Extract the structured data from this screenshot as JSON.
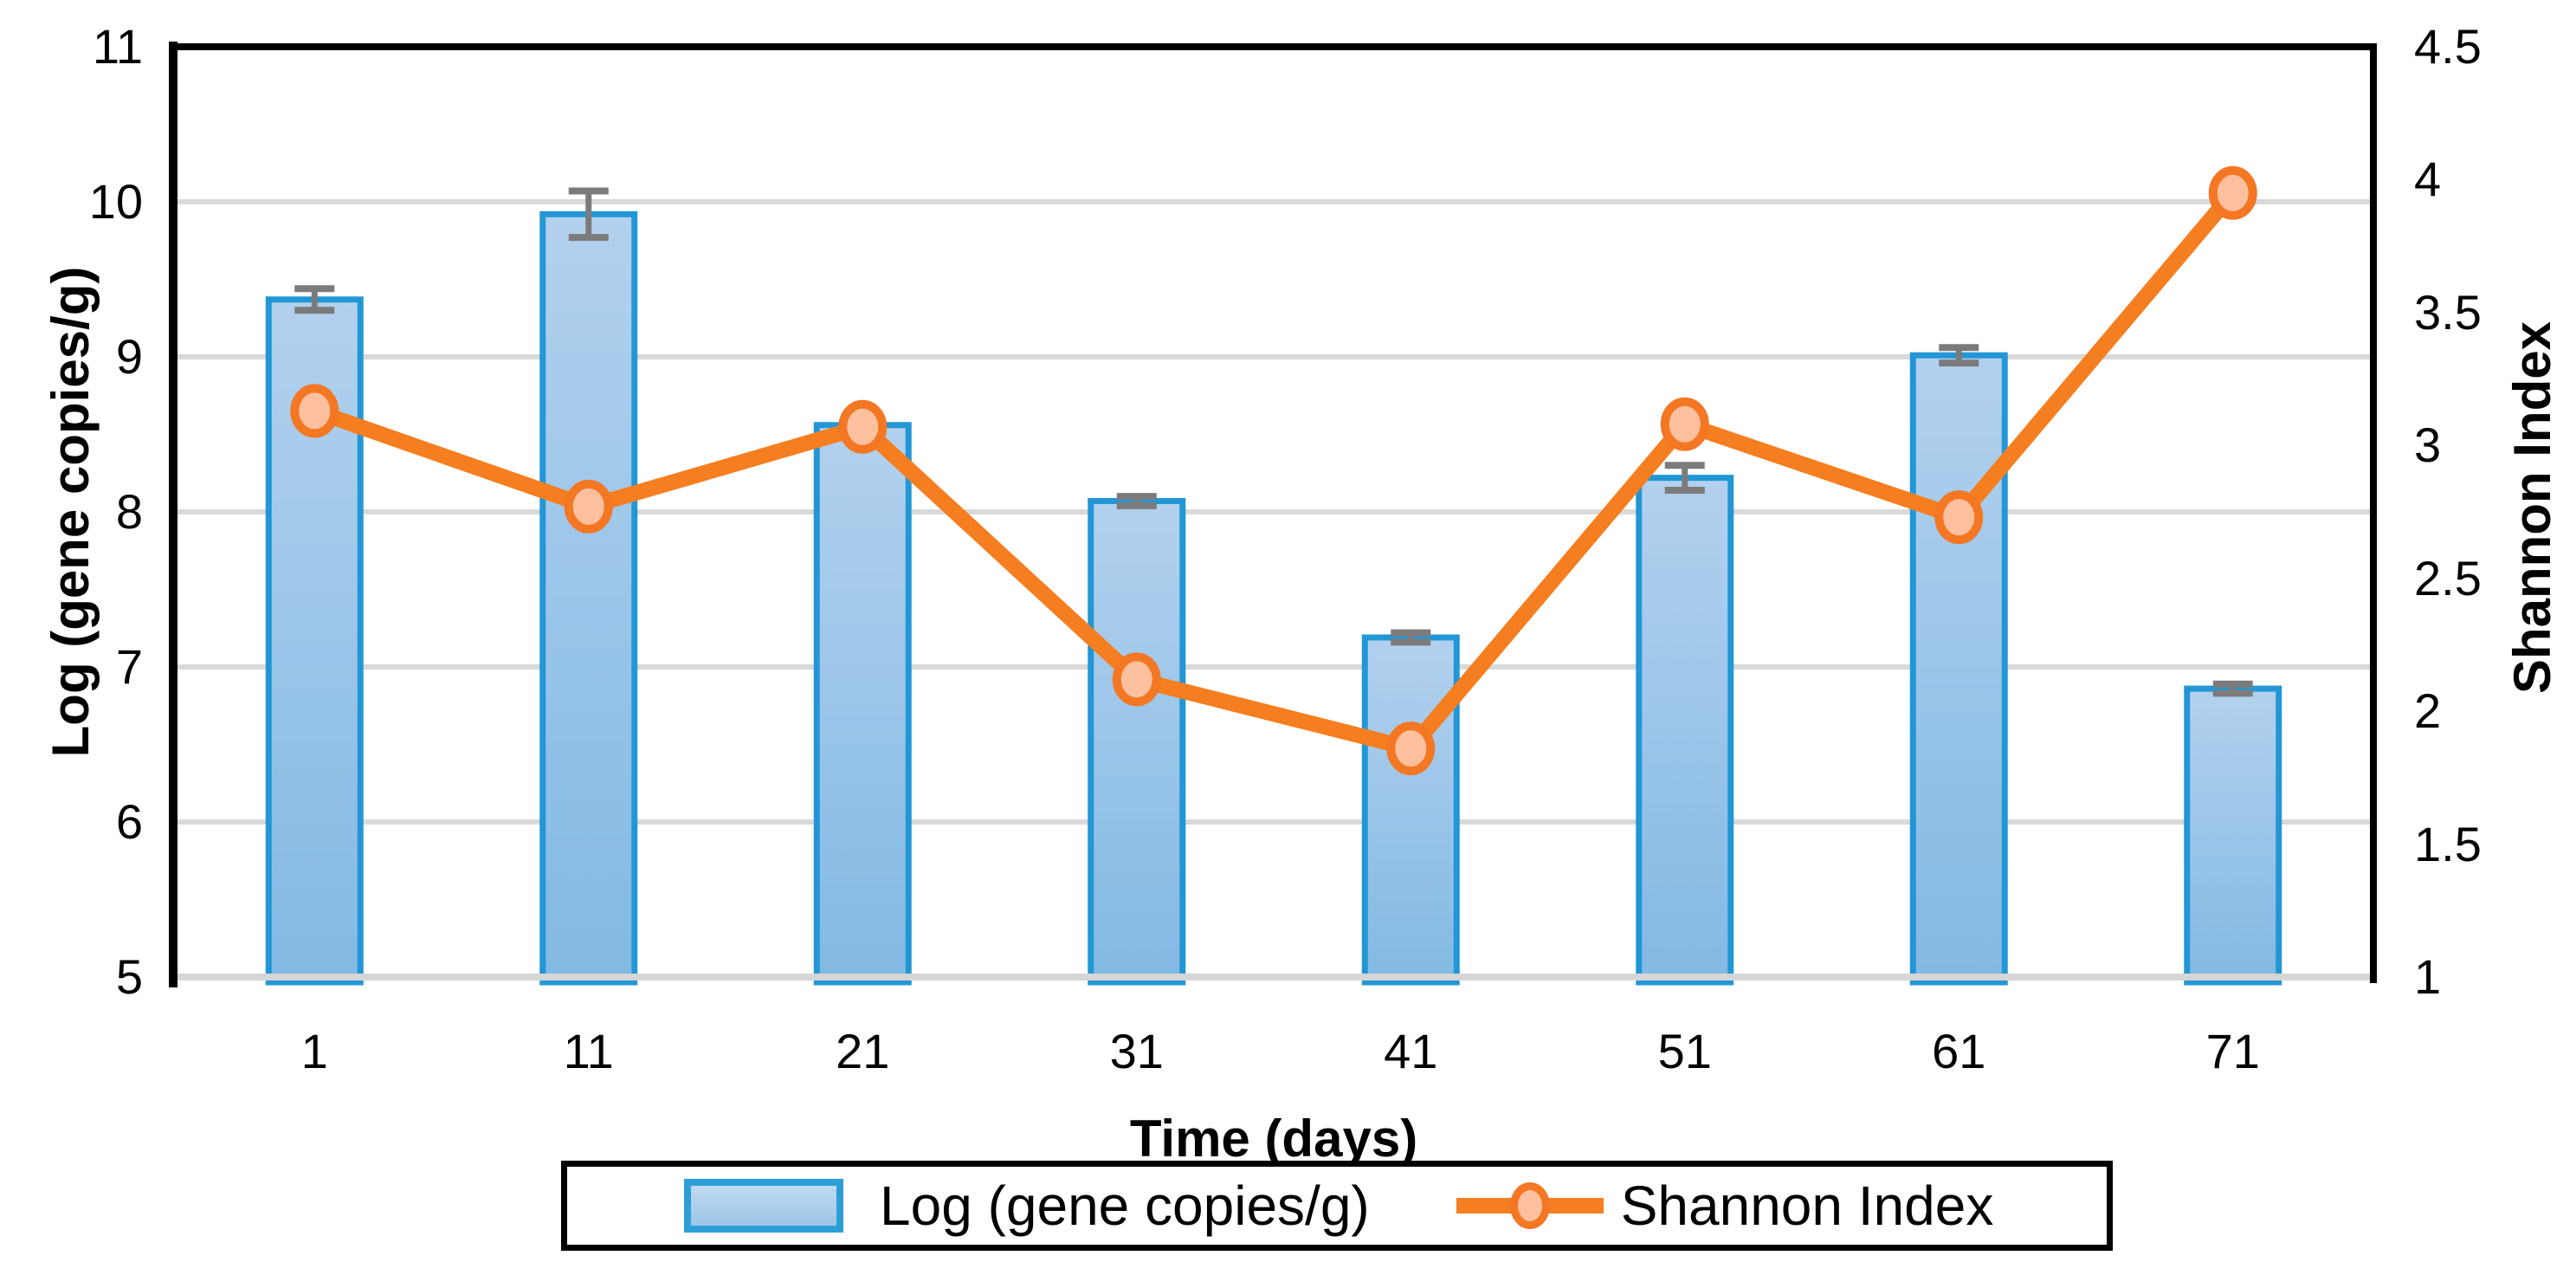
{
  "chart": {
    "x_title": "Time (days)",
    "y_left_title": "Log (gene copies/g)",
    "y_right_title": "Shannon Index",
    "legend": {
      "bar_label": "Log (gene copies/g)",
      "line_label": "Shannon Index"
    }
  },
  "chart_data": {
    "type": "bar+line combo",
    "categories": [
      "1",
      "11",
      "21",
      "31",
      "41",
      "51",
      "61",
      "71"
    ],
    "xlabel": "Time (days)",
    "series": [
      {
        "name": "Log (gene copies/g)",
        "type": "bar",
        "axis": "left",
        "values": [
          9.37,
          9.92,
          8.56,
          8.07,
          7.19,
          8.22,
          9.01,
          6.86
        ],
        "errors": [
          0.07,
          0.15,
          0,
          0.03,
          0.03,
          0.08,
          0.05,
          0.03
        ]
      },
      {
        "name": "Shannon Index",
        "type": "line",
        "axis": "right",
        "values": [
          3.13,
          2.77,
          3.07,
          2.12,
          1.86,
          3.08,
          2.73,
          3.95
        ]
      }
    ],
    "y_left_axis": {
      "label": "Log (gene copies/g)",
      "min": 5,
      "max": 11,
      "step": 1
    },
    "y_right_axis": {
      "label": "Shannon Index",
      "min": 1,
      "max": 4.5,
      "step": 0.5
    },
    "grid": "horizontal major gridlines at left-axis integers",
    "legend_position": "bottom, boxed",
    "colors": {
      "bar_fill_top": "#b3d1ee",
      "bar_fill_bottom": "#82b9e4",
      "bar_border": "#2396d5",
      "line": "#f57e20",
      "marker_fill": "#fcc09e",
      "marker_border": "#f47723",
      "error_bar": "#7b7b7b",
      "gridline": "#d9d9d9",
      "bottom_axis": "#d6d6d6",
      "axis_black": "#000000"
    }
  }
}
